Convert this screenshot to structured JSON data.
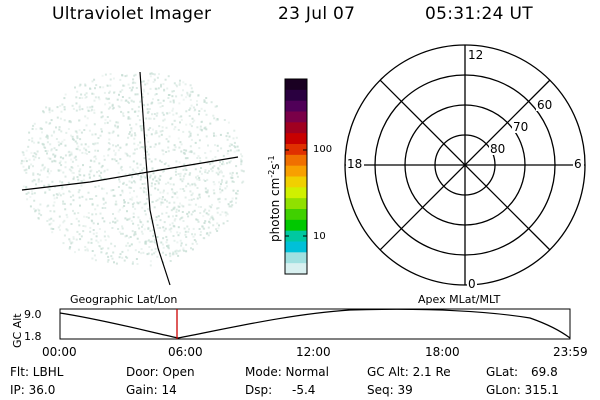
{
  "header": {
    "title": "Ultraviolet Imager",
    "date": "23 Jul 07",
    "time": "05:31:24 UT"
  },
  "colorbar": {
    "unit_label": "photon cm",
    "unit_sup1": "-2",
    "unit_mid": "s",
    "unit_sup2": "-1",
    "ticks": [
      "100",
      "10"
    ],
    "colors": [
      "#1a0022",
      "#2a0040",
      "#500058",
      "#7a0048",
      "#a00020",
      "#c80000",
      "#e03000",
      "#f07000",
      "#f8a000",
      "#f0d000",
      "#d0f000",
      "#90e000",
      "#40d000",
      "#00c800",
      "#00c8a0",
      "#00c0d8",
      "#a0e0e0",
      "#d8f0f0"
    ]
  },
  "polar_plot": {
    "labels": {
      "top": "12",
      "bottom": "0",
      "left": "18",
      "right": "6",
      "lat60": "60",
      "lat70": "70",
      "lat80": "80"
    }
  },
  "timeline": {
    "yaxis_label": "GC Alt",
    "y_top": "9.0",
    "y_bottom": "1.8",
    "section_left": "Geographic Lat/Lon",
    "section_right": "Apex MLat/MLT",
    "x_ticks": [
      "00:00",
      "06:00",
      "12:00",
      "18:00",
      "23:59"
    ],
    "current_marker_time": "05:31"
  },
  "info": {
    "flt": "Flt: LBHL",
    "ip": "IP: 36.0",
    "door": "Door: Open",
    "gain": "Gain: 14",
    "mode": "Mode: Normal",
    "dsp": "Dsp:",
    "dsp_value": "-5.4",
    "gcalt": "GC Alt: 2.1 Re",
    "seq": "Seq: 39",
    "glat": "GLat:",
    "glat_value": "69.8",
    "glon": "GLon: 315.1"
  },
  "colors": {
    "speckle": "#c4dcd2",
    "marker": "#cc0000"
  }
}
